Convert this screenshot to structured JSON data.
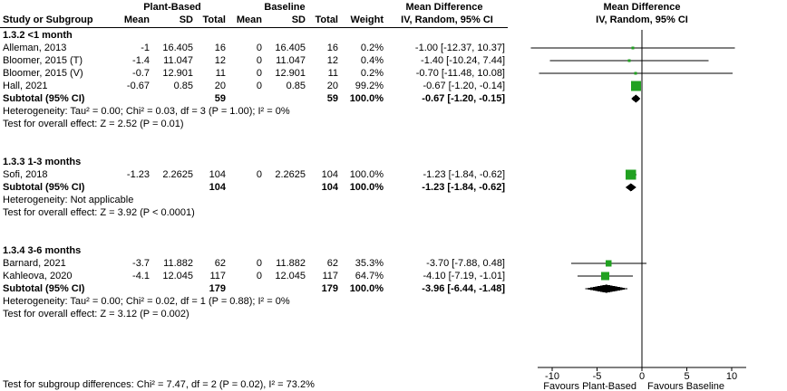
{
  "header": {
    "group1": "Plant-Based",
    "group2": "Baseline",
    "md_col": "Mean Difference",
    "plot_title": "Mean Difference",
    "plot_sub": "IV, Random, 95% CI",
    "cols": [
      "Study or Subgroup",
      "Mean",
      "SD",
      "Total",
      "Mean",
      "SD",
      "Total",
      "Weight",
      "IV, Random, 95% CI"
    ]
  },
  "chart_data": {
    "type": "forest",
    "effect_measure": "Mean Difference, IV, Random, 95% CI",
    "colors": {
      "marker_green": "#21a121",
      "diamond_black": "#000000",
      "line_black": "#000000"
    },
    "x_axis": {
      "ticks": [
        -10,
        -5,
        0,
        5,
        10
      ],
      "range_drawn": [
        -11.6,
        11.6
      ],
      "favours_left": "Favours Plant-Based",
      "favours_right": "Favours Baseline"
    },
    "subgroups": [
      {
        "label": "1.3.2 <1 month",
        "studies": [
          {
            "study": "Alleman, 2013",
            "mean1": "-1",
            "sd1": "16.405",
            "n1": "16",
            "mean2": "0",
            "sd2": "16.405",
            "n2": "16",
            "weight": "0.2%",
            "weight_pct": 0.2,
            "ci_text": "-1.00 [-12.37, 10.37]",
            "est": -1.0,
            "lo": -12.37,
            "hi": 10.37
          },
          {
            "study": "Bloomer, 2015 (T)",
            "mean1": "-1.4",
            "sd1": "11.047",
            "n1": "12",
            "mean2": "0",
            "sd2": "11.047",
            "n2": "12",
            "weight": "0.4%",
            "weight_pct": 0.4,
            "ci_text": "-1.40 [-10.24, 7.44]",
            "est": -1.4,
            "lo": -10.24,
            "hi": 7.44
          },
          {
            "study": "Bloomer, 2015 (V)",
            "mean1": "-0.7",
            "sd1": "12.901",
            "n1": "11",
            "mean2": "0",
            "sd2": "12.901",
            "n2": "11",
            "weight": "0.2%",
            "weight_pct": 0.2,
            "ci_text": "-0.70 [-11.48, 10.08]",
            "est": -0.7,
            "lo": -11.48,
            "hi": 10.08
          },
          {
            "study": "Hall, 2021",
            "mean1": "-0.67",
            "sd1": "0.85",
            "n1": "20",
            "mean2": "0",
            "sd2": "0.85",
            "n2": "20",
            "weight": "99.2%",
            "weight_pct": 99.2,
            "ci_text": "-0.67 [-1.20, -0.14]",
            "est": -0.67,
            "lo": -1.2,
            "hi": -0.14
          }
        ],
        "subtotal": {
          "label": "Subtotal (95% CI)",
          "n1": "59",
          "n2": "59",
          "weight": "100.0%",
          "ci_text": "-0.67 [-1.20, -0.15]",
          "est": -0.67,
          "lo": -1.2,
          "hi": -0.15
        },
        "heterogeneity": "Heterogeneity: Tau² = 0.00; Chi² = 0.03, df = 3 (P = 1.00); I² = 0%",
        "overall_effect": "Test for overall effect: Z = 2.52 (P = 0.01)"
      },
      {
        "label": "1.3.3 1-3 months",
        "studies": [
          {
            "study": "Sofi, 2018",
            "mean1": "-1.23",
            "sd1": "2.2625",
            "n1": "104",
            "mean2": "0",
            "sd2": "2.2625",
            "n2": "104",
            "weight": "100.0%",
            "weight_pct": 100.0,
            "ci_text": "-1.23 [-1.84, -0.62]",
            "est": -1.23,
            "lo": -1.84,
            "hi": -0.62
          }
        ],
        "subtotal": {
          "label": "Subtotal (95% CI)",
          "n1": "104",
          "n2": "104",
          "weight": "100.0%",
          "ci_text": "-1.23 [-1.84, -0.62]",
          "est": -1.23,
          "lo": -1.84,
          "hi": -0.62
        },
        "heterogeneity": "Heterogeneity: Not applicable",
        "overall_effect": "Test for overall effect: Z = 3.92 (P < 0.0001)"
      },
      {
        "label": "1.3.4 3-6 months",
        "studies": [
          {
            "study": "Barnard, 2021",
            "mean1": "-3.7",
            "sd1": "11.882",
            "n1": "62",
            "mean2": "0",
            "sd2": "11.882",
            "n2": "62",
            "weight": "35.3%",
            "weight_pct": 35.3,
            "ci_text": "-3.70 [-7.88, 0.48]",
            "est": -3.7,
            "lo": -7.88,
            "hi": 0.48
          },
          {
            "study": "Kahleova, 2020",
            "mean1": "-4.1",
            "sd1": "12.045",
            "n1": "117",
            "mean2": "0",
            "sd2": "12.045",
            "n2": "117",
            "weight": "64.7%",
            "weight_pct": 64.7,
            "ci_text": "-4.10 [-7.19, -1.01]",
            "est": -4.1,
            "lo": -7.19,
            "hi": -1.01
          }
        ],
        "subtotal": {
          "label": "Subtotal (95% CI)",
          "n1": "179",
          "n2": "179",
          "weight": "100.0%",
          "ci_text": "-3.96 [-6.44, -1.48]",
          "est": -3.96,
          "lo": -6.44,
          "hi": -1.48
        },
        "heterogeneity": "Heterogeneity: Tau² = 0.00; Chi² = 0.02, df = 1 (P = 0.88); I² = 0%",
        "overall_effect": "Test for overall effect: Z = 3.12 (P = 0.002)"
      }
    ],
    "test_for_subgroup_differences": "Test for subgroup differences: Chi² = 7.47, df = 2 (P = 0.02), I² = 73.2%"
  }
}
